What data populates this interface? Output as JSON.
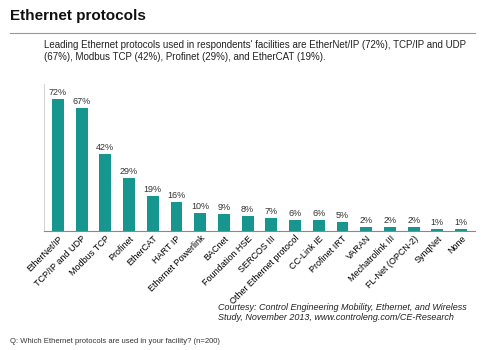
{
  "chart_data": {
    "type": "bar",
    "title": "Ethernet protocols",
    "subtitle": "Leading Ethernet protocols used in respondents' facilities are EtherNet/IP (72%), TCP/IP and UDP (67%), Modbus TCP (42%), Profinet (29%), and EtherCAT (19%).",
    "categories": [
      "EtherNet/IP",
      "TCP/IP and UDP",
      "Modbus TCP",
      "Profinet",
      "EtherCAT",
      "HART IP",
      "Ethernet Powerlink",
      "BACnet",
      "Foundation HSE",
      "SERCOS III",
      "Other Ethernet protocol",
      "CC-Link IE",
      "Profinet IRT",
      "VARAN",
      "Mechatrolink III",
      "FL-Net (OPCN-2)",
      "SynqNet",
      "None"
    ],
    "values": [
      72,
      67,
      42,
      29,
      19,
      16,
      10,
      9,
      8,
      7,
      6,
      6,
      5,
      2,
      2,
      2,
      1,
      1
    ],
    "value_labels": [
      "72%",
      "67%",
      "42%",
      "29%",
      "19%",
      "16%",
      "10%",
      "9%",
      "8%",
      "7%",
      "6%",
      "6%",
      "5%",
      "2%",
      "2%",
      "2%",
      "1%",
      "1%"
    ],
    "data_labels": true,
    "color": "#17958f",
    "ylim": [
      0,
      80
    ],
    "tick_labels": "x",
    "grid": false,
    "annotations": [
      "Q: Which Ethernet protocols are used in your facility? (n=200)",
      "Courtesy: Control Engineering Mobility, Ethernet, and Wireless Study, November 2013, www.controleng.com/CE-Research"
    ]
  }
}
